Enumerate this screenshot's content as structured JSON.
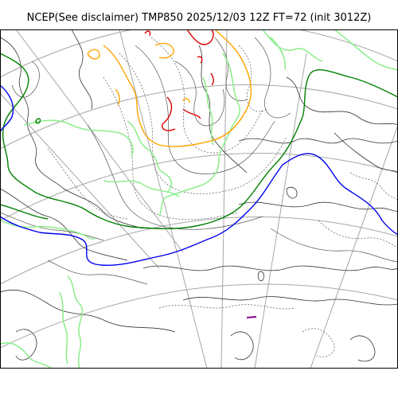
{
  "title": "NCEP(See disclaimer) TMP850 2025/12/03 12Z FT=72 (init 3012Z)",
  "colors": {
    "graticule": "#a6a6a6",
    "coastline": "#333333",
    "isotherm_plain": "#555555",
    "isotherm_light_green": "#90ee90",
    "isotherm_green": "#008000",
    "isotherm_blue": "#0000ee",
    "isotherm_orange": "#ffa500",
    "isotherm_red": "#dd0000",
    "isotherm_purple": "#8b008b"
  }
}
